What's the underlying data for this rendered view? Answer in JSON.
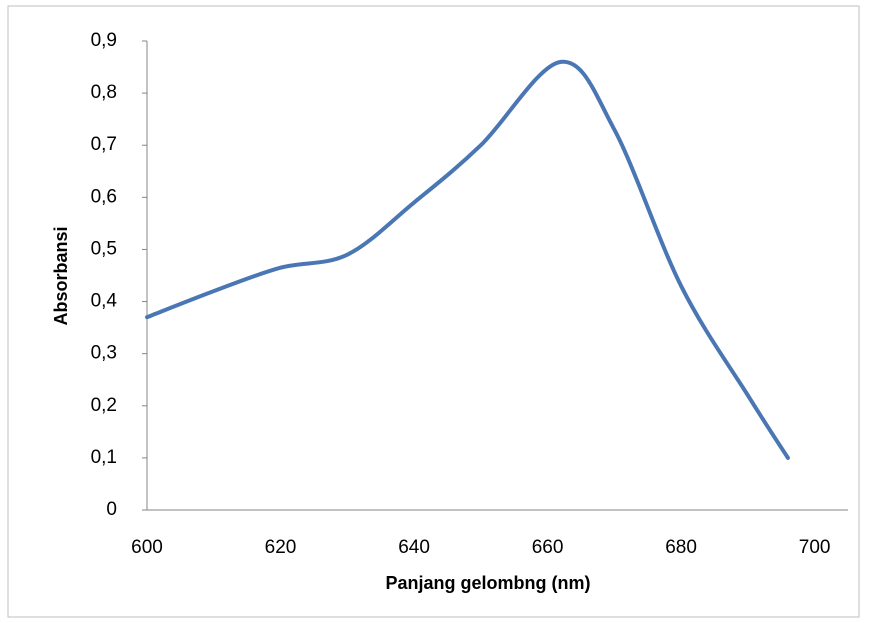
{
  "chart_data": {
    "type": "line",
    "x_label": "Panjang gelombng (nm)",
    "y_label": "Absorbansi",
    "x": [
      600,
      610,
      620,
      630,
      640,
      650,
      662,
      670,
      680,
      690,
      696
    ],
    "series": [
      {
        "name": "Absorbansi",
        "color": "#4a77b4",
        "values": [
          0.37,
          0.42,
          0.465,
          0.49,
          0.59,
          0.7,
          0.86,
          0.73,
          0.43,
          0.22,
          0.1
        ]
      }
    ],
    "xlim": [
      600,
      705
    ],
    "xticks": [
      600,
      620,
      640,
      660,
      680,
      700
    ],
    "ylim": [
      0,
      0.9
    ],
    "yticks": [
      0,
      {
        "value": 0.1,
        "label": "0,1"
      },
      {
        "value": 0.2,
        "label": "0,2"
      },
      {
        "value": 0.3,
        "label": "0,3"
      },
      {
        "value": 0.4,
        "label": "0,4"
      },
      {
        "value": 0.5,
        "label": "0,5"
      },
      {
        "value": 0.6,
        "label": "0,6"
      },
      {
        "value": 0.7,
        "label": "0,7"
      },
      {
        "value": 0.8,
        "label": "0,8"
      },
      {
        "value": 0.9,
        "label": "0,9"
      }
    ],
    "grid": false
  }
}
